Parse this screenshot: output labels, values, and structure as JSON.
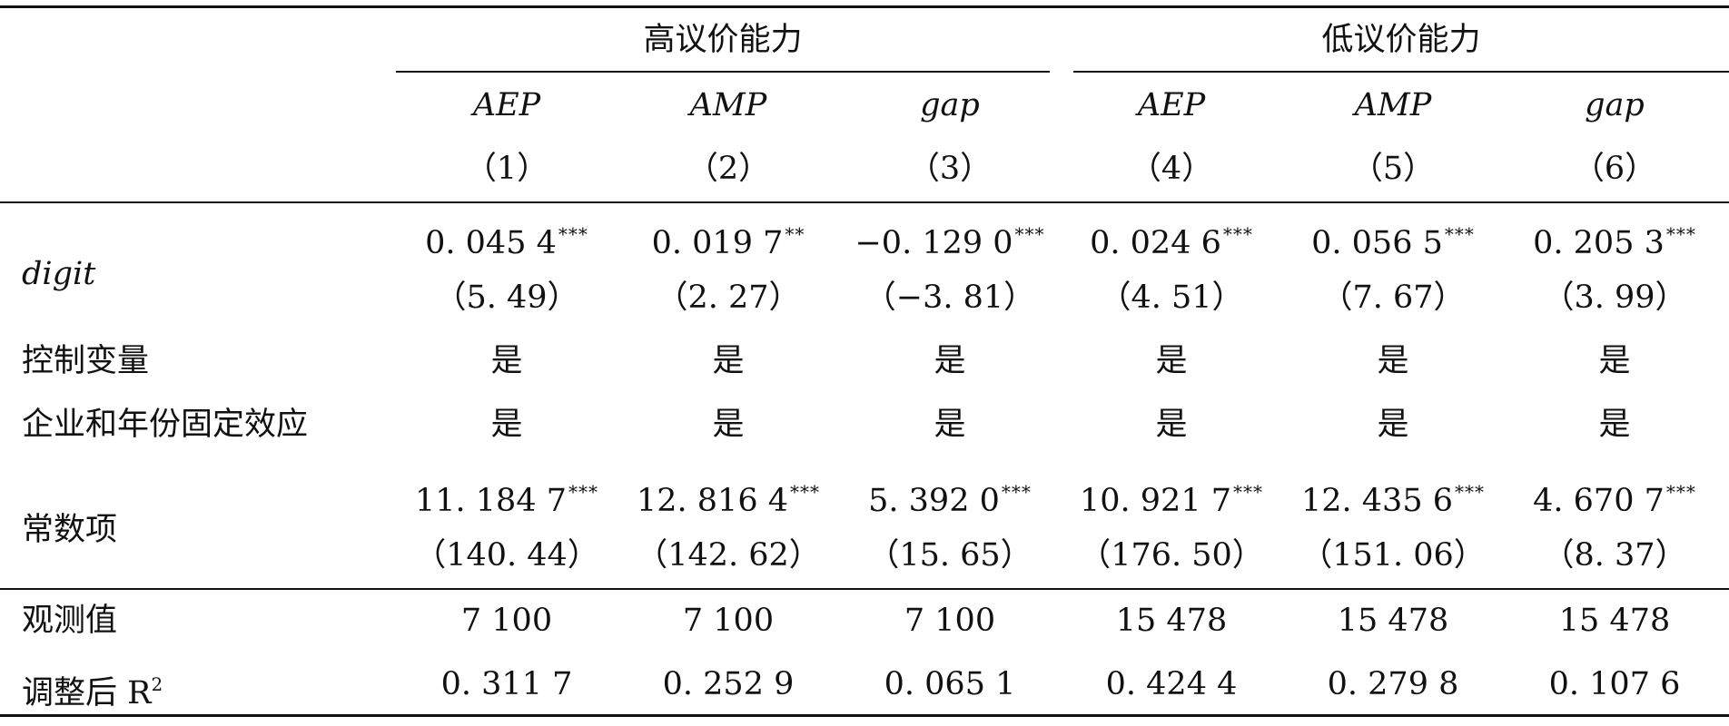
{
  "groups": [
    {
      "label": "高议价能力"
    },
    {
      "label": "低议价能力"
    }
  ],
  "columns": [
    {
      "var": "AEP",
      "num": "（1）"
    },
    {
      "var": "AMP",
      "num": "（2）"
    },
    {
      "var": "gap",
      "num": "（3）"
    },
    {
      "var": "AEP",
      "num": "（4）"
    },
    {
      "var": "AMP",
      "num": "（5）"
    },
    {
      "var": "gap",
      "num": "（6）"
    }
  ],
  "rows": {
    "digit": {
      "label": "digit",
      "coef": [
        "0. 045 4",
        "0. 019 7",
        "−0. 129 0",
        "0. 024 6",
        "0. 056 5",
        "0. 205 3"
      ],
      "stars": [
        "***",
        "**",
        "***",
        "***",
        "***",
        "***"
      ],
      "tstat": [
        "（5. 49）",
        "（2. 27）",
        "（−3. 81）",
        "（4. 51）",
        "（7. 67）",
        "（3. 99）"
      ]
    },
    "controls": {
      "label": "控制变量",
      "values": [
        "是",
        "是",
        "是",
        "是",
        "是",
        "是"
      ]
    },
    "fixed_effects": {
      "label": "企业和年份固定效应",
      "values": [
        "是",
        "是",
        "是",
        "是",
        "是",
        "是"
      ]
    },
    "constant": {
      "label": "常数项",
      "coef": [
        "11. 184 7",
        "12. 816 4",
        "5. 392 0",
        "10. 921 7",
        "12. 435 6",
        "4. 670 7"
      ],
      "stars": [
        "***",
        "***",
        "***",
        "***",
        "***",
        "***"
      ],
      "tstat": [
        "（140. 44）",
        "（142. 62）",
        "（15. 65）",
        "（176. 50）",
        "（151. 06）",
        "（8. 37）"
      ]
    },
    "observations": {
      "label": "观测值",
      "values": [
        "7 100",
        "7 100",
        "7 100",
        "15 478",
        "15 478",
        "15 478"
      ]
    },
    "adj_r2": {
      "label": "调整后 R",
      "label_sup": "2",
      "values": [
        "0. 311 7",
        "0. 252 9",
        "0. 065 1",
        "0. 424 4",
        "0. 279 8",
        "0. 107 6"
      ]
    }
  }
}
